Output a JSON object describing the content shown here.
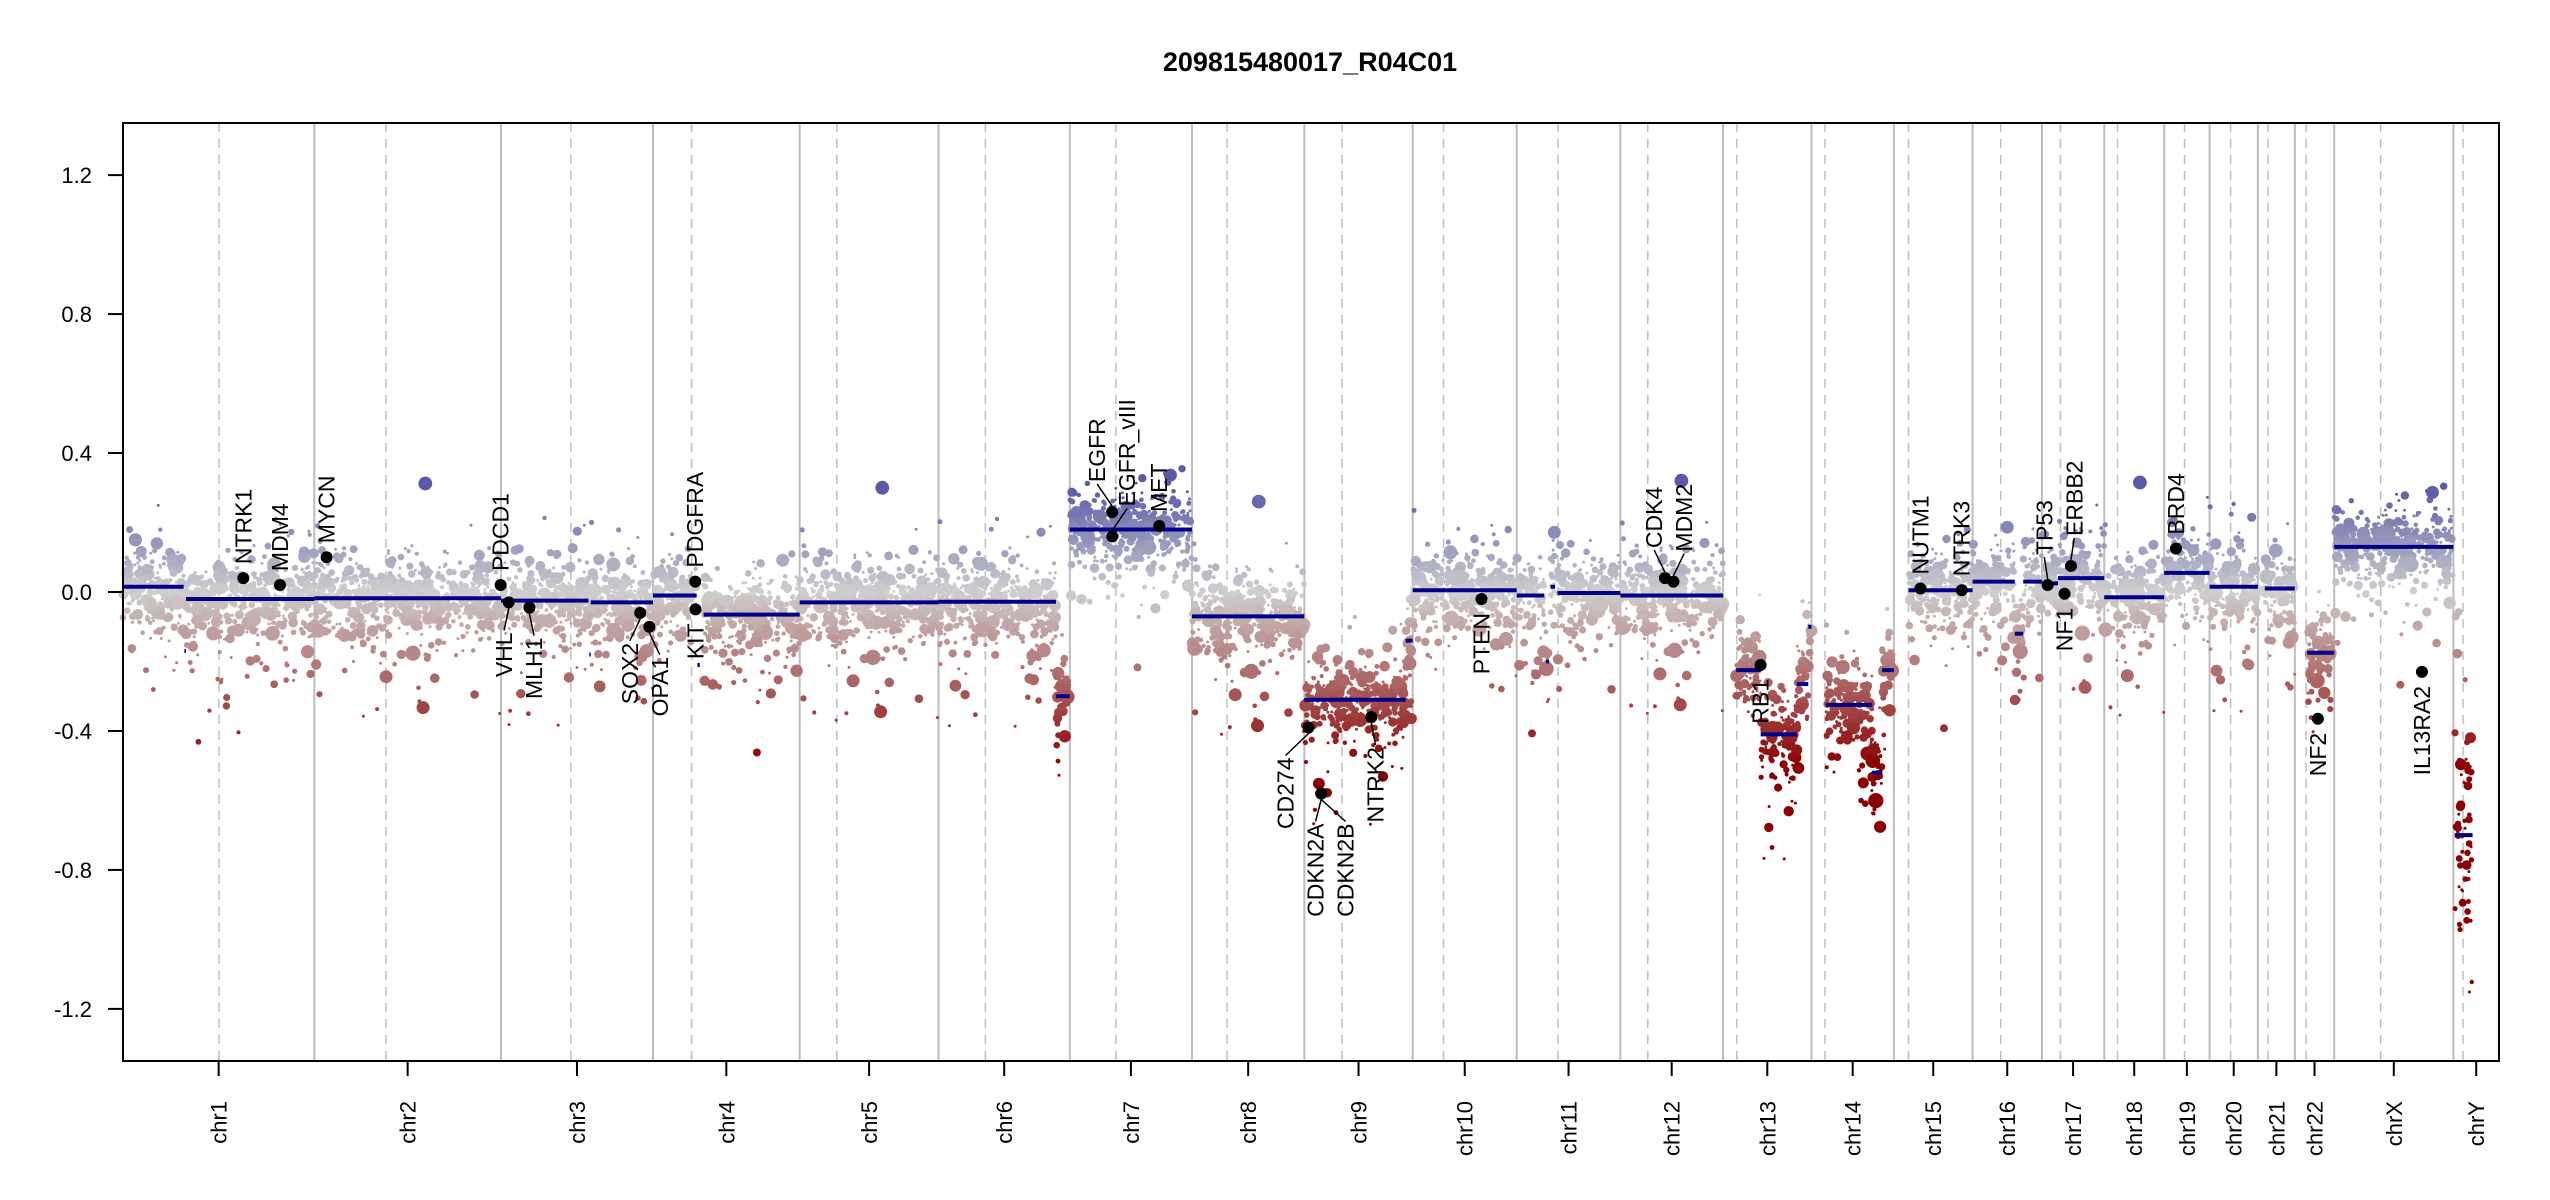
{
  "chart_data": {
    "type": "scatter",
    "title": "209815480017_R04C01",
    "xlabel": "",
    "ylabel": "",
    "ylim": [
      -1.35,
      1.35
    ],
    "yticks": [
      -1.2,
      -0.8,
      -0.4,
      0.0,
      0.4,
      0.8,
      1.2
    ],
    "ytick_labels": [
      "-1.2",
      "-0.8",
      "-0.4",
      "0.0",
      "0.4",
      "0.8",
      "1.2"
    ],
    "grid": false,
    "colors": {
      "segment": "#00008b",
      "gain": "#5a5aa8",
      "neutral": "#cfcfcf",
      "loss": "#8b0000",
      "chrom_boundary": "#bdbdbd",
      "centromere": "#bdbdbd",
      "gene_point": "#000000"
    },
    "chromosomes": [
      {
        "name": "chr1",
        "length": 249.25,
        "centromere": 125.0
      },
      {
        "name": "chr2",
        "length": 243.2,
        "centromere": 93.3
      },
      {
        "name": "chr3",
        "length": 198.0,
        "centromere": 91.0
      },
      {
        "name": "chr4",
        "length": 191.15,
        "centromere": 50.4
      },
      {
        "name": "chr5",
        "length": 180.9,
        "centromere": 48.4
      },
      {
        "name": "chr6",
        "length": 171.1,
        "centromere": 61.0
      },
      {
        "name": "chr7",
        "length": 159.1,
        "centromere": 59.9
      },
      {
        "name": "chr8",
        "length": 146.4,
        "centromere": 45.6
      },
      {
        "name": "chr9",
        "length": 141.2,
        "centromere": 49.0
      },
      {
        "name": "chr10",
        "length": 135.5,
        "centromere": 40.2
      },
      {
        "name": "chr11",
        "length": 135.0,
        "centromere": 53.7
      },
      {
        "name": "chr12",
        "length": 133.85,
        "centromere": 35.8
      },
      {
        "name": "chr13",
        "length": 115.2,
        "centromere": 17.9
      },
      {
        "name": "chr14",
        "length": 107.35,
        "centromere": 17.6
      },
      {
        "name": "chr15",
        "length": 102.5,
        "centromere": 19.0
      },
      {
        "name": "chr16",
        "length": 90.35,
        "centromere": 36.6
      },
      {
        "name": "chr17",
        "length": 81.2,
        "centromere": 24.0
      },
      {
        "name": "chr18",
        "length": 78.1,
        "centromere": 17.2
      },
      {
        "name": "chr19",
        "length": 59.1,
        "centromere": 26.5
      },
      {
        "name": "chr20",
        "length": 63.0,
        "centromere": 27.5
      },
      {
        "name": "chr21",
        "length": 48.1,
        "centromere": 13.2
      },
      {
        "name": "chr22",
        "length": 51.3,
        "centromere": 14.7
      },
      {
        "name": "chrX",
        "length": 155.3,
        "centromere": 60.6
      },
      {
        "name": "chrY",
        "length": 59.4,
        "centromere": 12.5
      }
    ],
    "segments": [
      {
        "chr": "chr1",
        "start": 0,
        "end": 79,
        "value": 0.015
      },
      {
        "chr": "chr1",
        "start": 80,
        "end": 82,
        "value": -0.17
      },
      {
        "chr": "chr1",
        "start": 82,
        "end": 249.25,
        "value": -0.02
      },
      {
        "chr": "chr2",
        "start": 0,
        "end": 243.2,
        "value": -0.018
      },
      {
        "chr": "chr3",
        "start": 0,
        "end": 114,
        "value": -0.025
      },
      {
        "chr": "chr3",
        "start": 115,
        "end": 117,
        "value": -0.18
      },
      {
        "chr": "chr3",
        "start": 117,
        "end": 198,
        "value": -0.03
      },
      {
        "chr": "chr4",
        "start": 0,
        "end": 57,
        "value": -0.01
      },
      {
        "chr": "chr4",
        "start": 58,
        "end": 61,
        "value": -0.21
      },
      {
        "chr": "chr4",
        "start": 66,
        "end": 191.15,
        "value": -0.065
      },
      {
        "chr": "chr5",
        "start": 0,
        "end": 180.9,
        "value": -0.03
      },
      {
        "chr": "chr6",
        "start": 0,
        "end": 153,
        "value": -0.028
      },
      {
        "chr": "chr6",
        "start": 153,
        "end": 171.1,
        "value": -0.3
      },
      {
        "chr": "chr7",
        "start": 0,
        "end": 159.1,
        "value": 0.18
      },
      {
        "chr": "chr8",
        "start": 0,
        "end": 146.4,
        "value": -0.07
      },
      {
        "chr": "chr9",
        "start": 0,
        "end": 132,
        "value": -0.31
      },
      {
        "chr": "chr9",
        "start": 132,
        "end": 141.2,
        "value": -0.14
      },
      {
        "chr": "chr10",
        "start": 0,
        "end": 135.5,
        "value": 0.005
      },
      {
        "chr": "chr11",
        "start": 0,
        "end": 36,
        "value": -0.01
      },
      {
        "chr": "chr11",
        "start": 38,
        "end": 42,
        "value": -0.2
      },
      {
        "chr": "chr11",
        "start": 44,
        "end": 50,
        "value": 0.015
      },
      {
        "chr": "chr11",
        "start": 53,
        "end": 135.0,
        "value": -0.003
      },
      {
        "chr": "chr12",
        "start": 0,
        "end": 133.85,
        "value": -0.01
      },
      {
        "chr": "chr13",
        "start": 17,
        "end": 49,
        "value": -0.225
      },
      {
        "chr": "chr13",
        "start": 49,
        "end": 96,
        "value": -0.41
      },
      {
        "chr": "chr13",
        "start": 96,
        "end": 111,
        "value": -0.265
      },
      {
        "chr": "chr13",
        "start": 111,
        "end": 115.2,
        "value": -0.1
      },
      {
        "chr": "chr14",
        "start": 19,
        "end": 79,
        "value": -0.325
      },
      {
        "chr": "chr14",
        "start": 79,
        "end": 92,
        "value": -0.52
      },
      {
        "chr": "chr14",
        "start": 92,
        "end": 107.35,
        "value": -0.225
      },
      {
        "chr": "chr15",
        "start": 19,
        "end": 102.5,
        "value": 0.005
      },
      {
        "chr": "chr16",
        "start": 0,
        "end": 55,
        "value": 0.03
      },
      {
        "chr": "chr16",
        "start": 55,
        "end": 66,
        "value": -0.12
      },
      {
        "chr": "chr16",
        "start": 66,
        "end": 90.35,
        "value": 0.03
      },
      {
        "chr": "chr17",
        "start": 0,
        "end": 21,
        "value": 0.025
      },
      {
        "chr": "chr17",
        "start": 21,
        "end": 81.2,
        "value": 0.04
      },
      {
        "chr": "chr18",
        "start": 0,
        "end": 78.1,
        "value": -0.015
      },
      {
        "chr": "chr19",
        "start": 0,
        "end": 59.1,
        "value": 0.055
      },
      {
        "chr": "chr20",
        "start": 0,
        "end": 63.0,
        "value": 0.015
      },
      {
        "chr": "chr21",
        "start": 9,
        "end": 48.1,
        "value": 0.01
      },
      {
        "chr": "chr22",
        "start": 16,
        "end": 51.3,
        "value": -0.175
      },
      {
        "chr": "chrX",
        "start": 0,
        "end": 155.3,
        "value": 0.13
      },
      {
        "chr": "chrY",
        "start": 2,
        "end": 25,
        "value": -0.7
      }
    ],
    "genes": [
      {
        "name": "NTRK1",
        "chr": "chr1",
        "pos": 156.8,
        "value": 0.04,
        "side": "above"
      },
      {
        "name": "MDM4",
        "chr": "chr1",
        "pos": 204.5,
        "value": 0.02,
        "side": "above"
      },
      {
        "name": "MYCN",
        "chr": "chr2",
        "pos": 16.0,
        "value": 0.1,
        "side": "above"
      },
      {
        "name": "PDCD1",
        "chr": "chr2",
        "pos": 242.8,
        "value": 0.02,
        "side": "above"
      },
      {
        "name": "VHL",
        "chr": "chr3",
        "pos": 10.2,
        "value": -0.03,
        "side": "below"
      },
      {
        "name": "MLH1",
        "chr": "chr3",
        "pos": 37.0,
        "value": -0.045,
        "side": "below"
      },
      {
        "name": "SOX2",
        "chr": "chr3",
        "pos": 181.4,
        "value": -0.06,
        "side": "below"
      },
      {
        "name": "OPA1",
        "chr": "chr3",
        "pos": 193.3,
        "value": -0.1,
        "side": "below"
      },
      {
        "name": "PDGFRA",
        "chr": "chr4",
        "pos": 55.1,
        "value": 0.03,
        "side": "above"
      },
      {
        "name": "KIT",
        "chr": "chr4",
        "pos": 55.5,
        "value": -0.05,
        "side": "below"
      },
      {
        "name": "EGFR",
        "chr": "chr7",
        "pos": 55.1,
        "value": 0.23,
        "side": "above"
      },
      {
        "name": "EGFR_vIII",
        "chr": "chr7",
        "pos": 55.2,
        "value": 0.16,
        "side": "above"
      },
      {
        "name": "MET",
        "chr": "chr7",
        "pos": 116.4,
        "value": 0.19,
        "side": "above"
      },
      {
        "name": "CD274",
        "chr": "chr9",
        "pos": 5.45,
        "value": -0.39,
        "side": "below"
      },
      {
        "name": "CDKN2A",
        "chr": "chr9",
        "pos": 21.97,
        "value": -0.58,
        "side": "below"
      },
      {
        "name": "CDKN2B",
        "chr": "chr9",
        "pos": 22.0,
        "value": -0.58,
        "side": "below"
      },
      {
        "name": "NTRK2",
        "chr": "chr9",
        "pos": 87.3,
        "value": -0.36,
        "side": "below"
      },
      {
        "name": "PTEN",
        "chr": "chr10",
        "pos": 89.6,
        "value": -0.02,
        "side": "below"
      },
      {
        "name": "CDK4",
        "chr": "chr12",
        "pos": 58.1,
        "value": 0.04,
        "side": "above"
      },
      {
        "name": "MDM2",
        "chr": "chr12",
        "pos": 69.2,
        "value": 0.03,
        "side": "above"
      },
      {
        "name": "RB1",
        "chr": "chr13",
        "pos": 48.9,
        "value": -0.21,
        "side": "below"
      },
      {
        "name": "NUTM1",
        "chr": "chr15",
        "pos": 34.6,
        "value": 0.01,
        "side": "above"
      },
      {
        "name": "NTRK3",
        "chr": "chr15",
        "pos": 88.4,
        "value": 0.005,
        "side": "above"
      },
      {
        "name": "TP53",
        "chr": "chr17",
        "pos": 7.5,
        "value": 0.02,
        "side": "above"
      },
      {
        "name": "NF1",
        "chr": "chr17",
        "pos": 29.5,
        "value": -0.005,
        "side": "below"
      },
      {
        "name": "ERBB2",
        "chr": "chr17",
        "pos": 37.8,
        "value": 0.075,
        "side": "above"
      },
      {
        "name": "BRD4",
        "chr": "chr19",
        "pos": 15.3,
        "value": 0.125,
        "side": "above"
      },
      {
        "name": "NF2",
        "chr": "chr22",
        "pos": 30.0,
        "value": -0.365,
        "side": "below"
      },
      {
        "name": "IL13RA2",
        "chr": "chrX",
        "pos": 114.3,
        "value": -0.23,
        "side": "below"
      }
    ]
  }
}
